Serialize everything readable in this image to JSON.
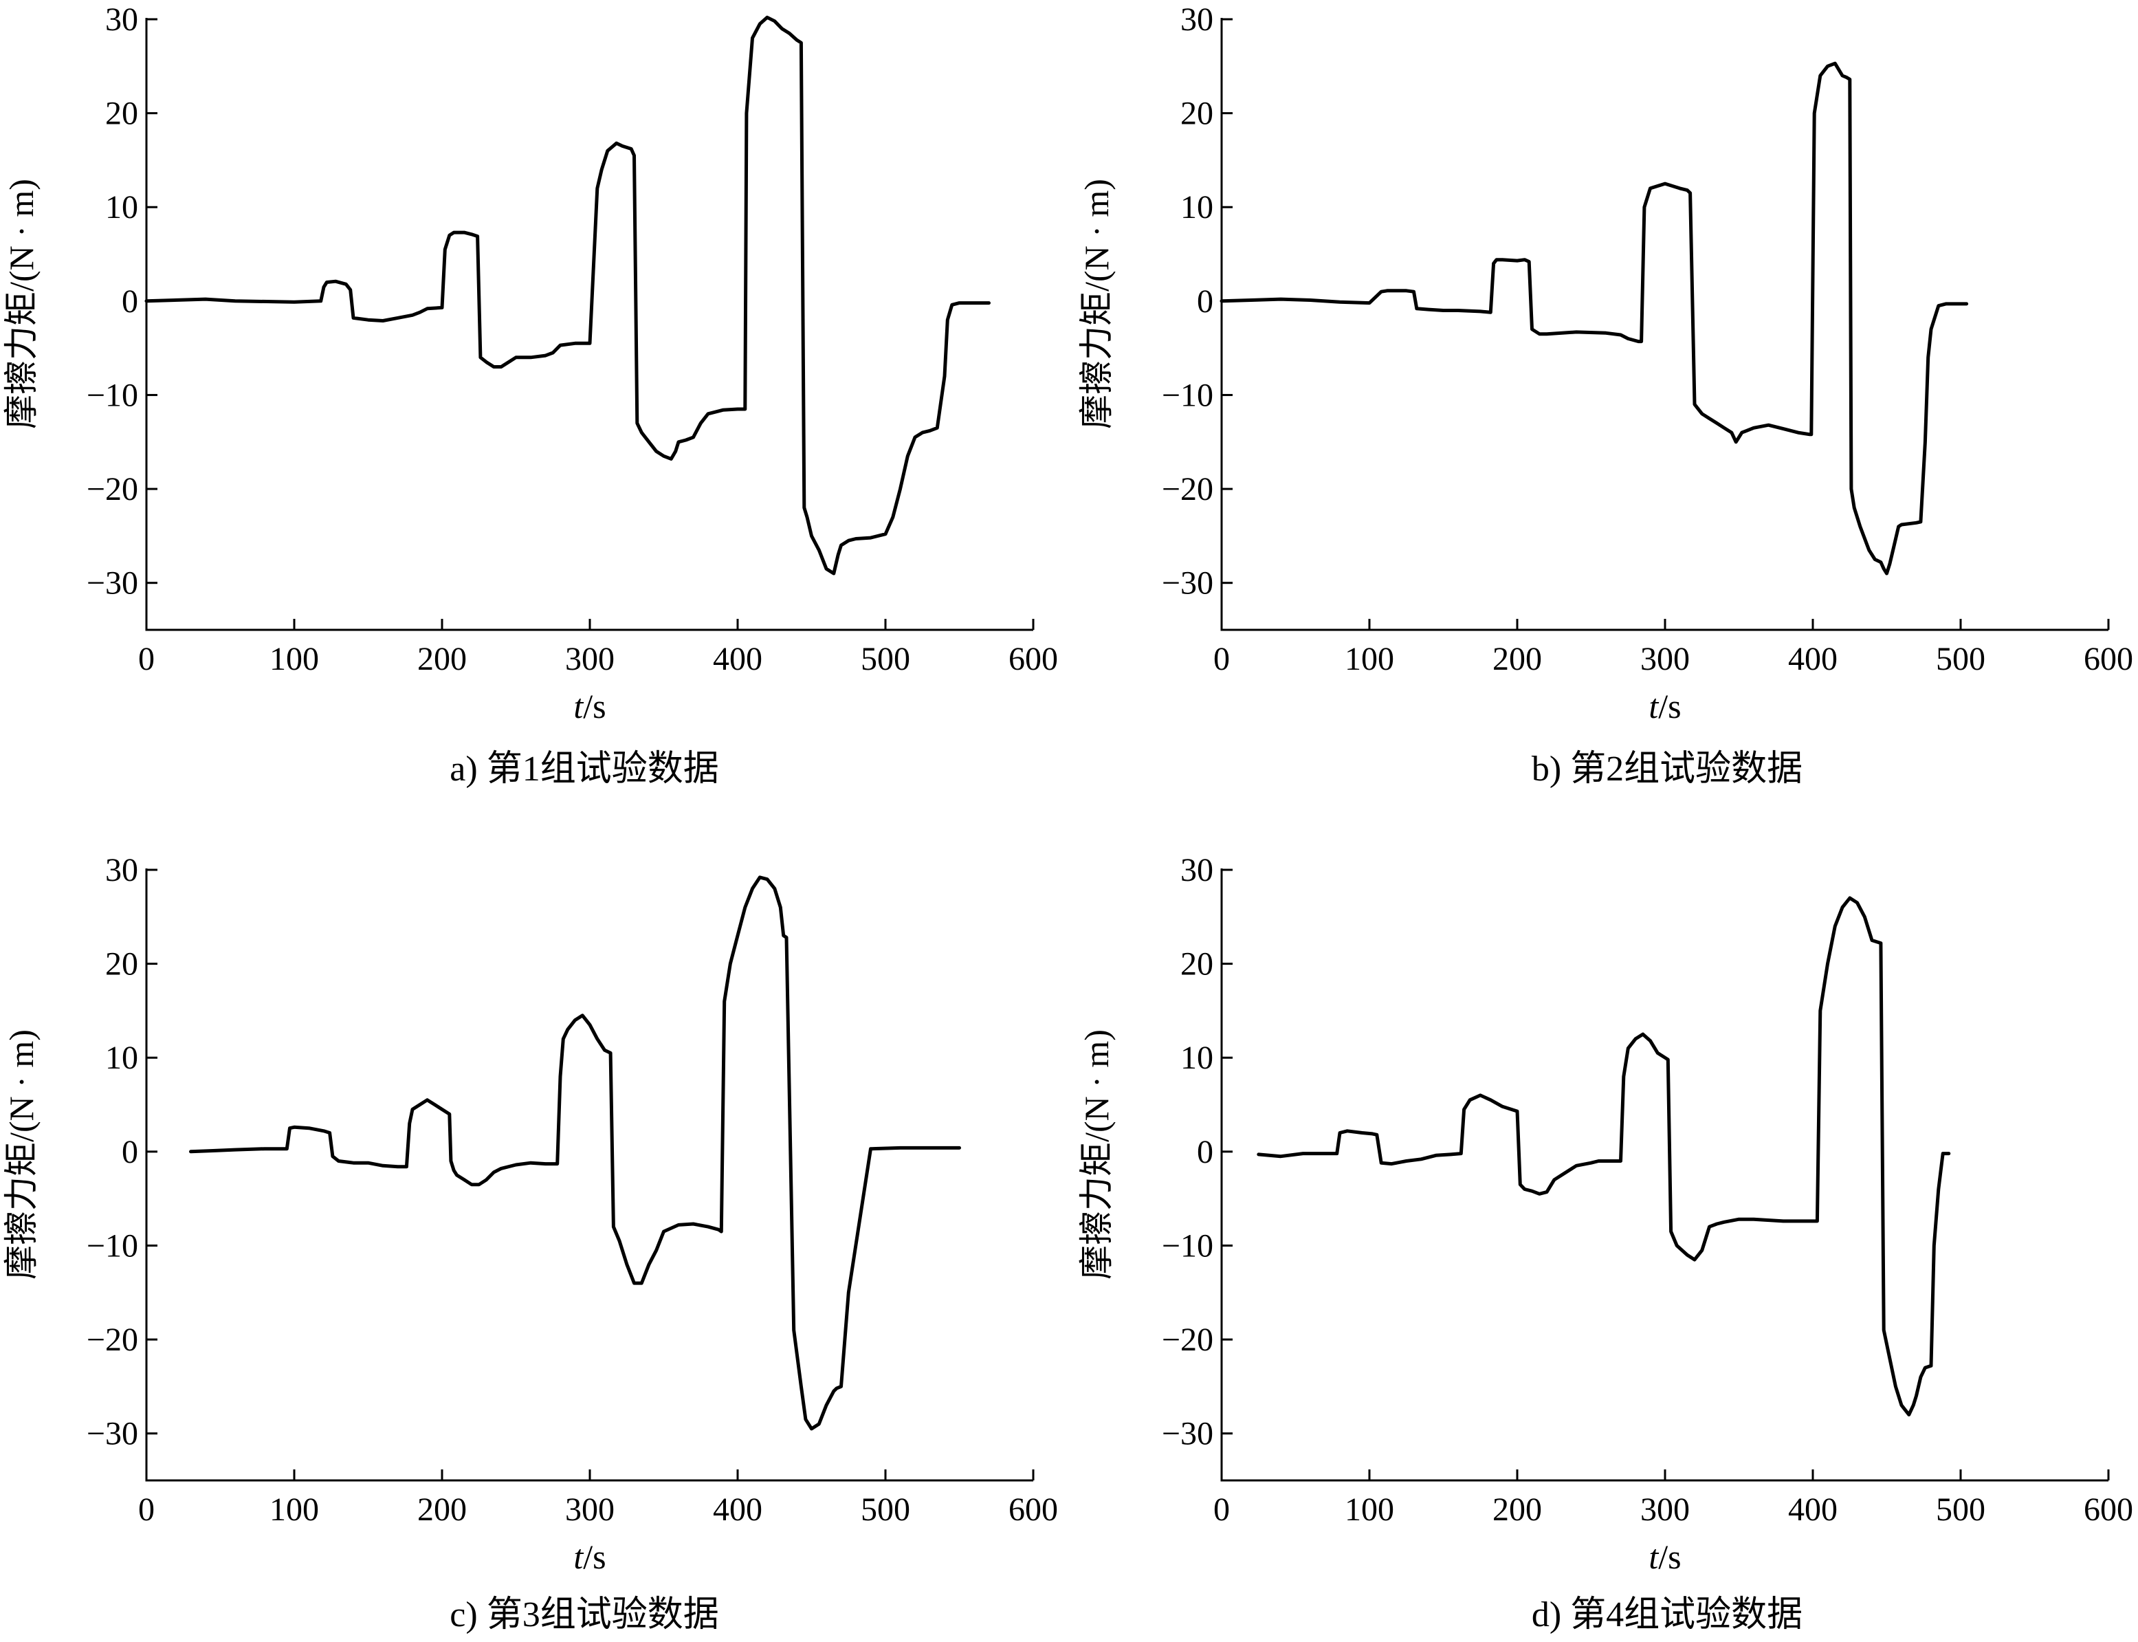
{
  "chart_data": [
    {
      "type": "line",
      "caption": "a) 第1组试验数据",
      "xlabel_italic": "t",
      "xlabel_unit": "/s",
      "ylabel": "摩擦力矩/(N · m)",
      "xlim": [
        0,
        600
      ],
      "ylim": [
        -35,
        30
      ],
      "xticks": [
        0,
        100,
        200,
        300,
        400,
        500,
        600
      ],
      "yticks": [
        -30,
        -20,
        -10,
        0,
        10,
        20,
        30
      ],
      "series": [
        {
          "x": [
            0,
            40,
            60,
            100,
            118,
            120,
            122,
            128,
            135,
            138,
            140,
            150,
            160,
            170,
            180,
            185,
            190,
            200,
            202,
            205,
            208,
            215,
            220,
            224,
            226,
            230,
            235,
            240,
            245,
            250,
            260,
            270,
            275,
            280,
            290,
            300,
            305,
            308,
            312,
            318,
            322,
            328,
            330,
            332,
            335,
            340,
            345,
            350,
            355,
            358,
            360,
            365,
            370,
            375,
            380,
            385,
            390,
            400,
            405,
            406,
            408,
            410,
            415,
            420,
            425,
            430,
            435,
            440,
            443,
            445,
            447,
            450,
            455,
            460,
            465,
            468,
            470,
            475,
            480,
            490,
            500,
            505,
            510,
            515,
            520,
            525,
            530,
            535,
            540,
            542,
            545,
            550,
            560,
            570
          ],
          "y": [
            0,
            0.2,
            0,
            -0.1,
            0,
            1.5,
            2,
            2.1,
            1.8,
            1.2,
            -1.8,
            -2,
            -2.1,
            -1.8,
            -1.5,
            -1.2,
            -0.8,
            -0.7,
            5.5,
            7,
            7.3,
            7.3,
            7.1,
            6.9,
            -6,
            -6.5,
            -7,
            -7,
            -6.5,
            -6,
            -6,
            -5.8,
            -5.5,
            -4.7,
            -4.5,
            -4.5,
            12,
            14,
            16,
            16.8,
            16.5,
            16.2,
            15.5,
            -13,
            -14,
            -15,
            -16,
            -16.5,
            -16.8,
            -16,
            -15,
            -14.8,
            -14.5,
            -13,
            -12,
            -11.8,
            -11.6,
            -11.5,
            -11.5,
            20,
            24,
            28,
            29.5,
            30.2,
            29.8,
            29,
            28.5,
            27.8,
            27.5,
            -22,
            -23,
            -25,
            -26.5,
            -28.5,
            -29,
            -27,
            -26,
            -25.5,
            -25.3,
            -25.2,
            -24.8,
            -23,
            -20,
            -16.5,
            -14.5,
            -14,
            -13.8,
            -13.5,
            -8,
            -2,
            -0.4,
            -0.2,
            -0.2,
            -0.2
          ]
        }
      ]
    },
    {
      "type": "line",
      "caption": "b) 第2组试验数据",
      "xlabel_italic": "t",
      "xlabel_unit": "/s",
      "ylabel": "摩擦力矩/(N · m)",
      "xlim": [
        0,
        600
      ],
      "ylim": [
        -35,
        30
      ],
      "xticks": [
        0,
        100,
        200,
        300,
        400,
        500,
        600
      ],
      "yticks": [
        -30,
        -20,
        -10,
        0,
        10,
        20,
        30
      ],
      "series": [
        {
          "x": [
            0,
            20,
            40,
            60,
            80,
            100,
            108,
            112,
            125,
            130,
            132,
            140,
            150,
            160,
            175,
            182,
            184,
            186,
            190,
            200,
            205,
            208,
            210,
            215,
            220,
            240,
            260,
            270,
            275,
            282,
            284,
            286,
            290,
            300,
            310,
            315,
            317,
            320,
            325,
            330,
            335,
            340,
            345,
            348,
            352,
            360,
            370,
            380,
            390,
            398,
            399,
            401,
            405,
            410,
            415,
            420,
            423,
            425,
            426,
            428,
            432,
            438,
            442,
            446,
            448,
            450,
            452,
            455,
            458,
            460,
            470,
            473,
            476,
            478,
            480,
            485,
            490,
            500,
            504
          ],
          "y": [
            0,
            0.1,
            0.2,
            0.1,
            -0.1,
            -0.2,
            1,
            1.1,
            1.1,
            1,
            -0.8,
            -0.9,
            -1,
            -1,
            -1.1,
            -1.2,
            4,
            4.4,
            4.4,
            4.3,
            4.4,
            4.2,
            -3,
            -3.5,
            -3.5,
            -3.3,
            -3.4,
            -3.6,
            -4,
            -4.3,
            -4.3,
            10,
            12,
            12.5,
            12,
            11.8,
            11.5,
            -11,
            -12,
            -12.5,
            -13,
            -13.5,
            -14,
            -15,
            -14,
            -13.5,
            -13.2,
            -13.6,
            -14,
            -14.2,
            -14.2,
            20,
            24,
            25,
            25.3,
            24,
            23.8,
            23.6,
            -20,
            -22,
            -24,
            -26.5,
            -27.5,
            -27.8,
            -28.5,
            -29,
            -28,
            -26,
            -24,
            -23.8,
            -23.6,
            -23.5,
            -15,
            -6,
            -3,
            -0.5,
            -0.3,
            -0.3,
            -0.3
          ]
        }
      ]
    },
    {
      "type": "line",
      "caption": "c) 第3组试验数据",
      "xlabel_italic": "t",
      "xlabel_unit": "/s",
      "ylabel": "摩擦力矩/(N · m)",
      "xlim": [
        0,
        600
      ],
      "ylim": [
        -35,
        30
      ],
      "xticks": [
        0,
        100,
        200,
        300,
        400,
        500,
        600
      ],
      "yticks": [
        -30,
        -20,
        -10,
        0,
        10,
        20,
        30
      ],
      "series": [
        {
          "x": [
            30,
            45,
            60,
            80,
            95,
            97,
            100,
            110,
            120,
            124,
            126,
            130,
            140,
            150,
            160,
            170,
            176,
            178,
            180,
            185,
            190,
            195,
            200,
            205,
            206,
            208,
            210,
            215,
            220,
            225,
            230,
            235,
            240,
            250,
            260,
            270,
            278,
            280,
            282,
            285,
            290,
            295,
            300,
            305,
            310,
            314,
            316,
            320,
            325,
            330,
            335,
            340,
            345,
            350,
            360,
            370,
            380,
            387,
            389,
            391,
            395,
            400,
            405,
            410,
            415,
            420,
            425,
            429,
            431,
            433,
            438,
            443,
            446,
            450,
            455,
            460,
            465,
            467,
            470,
            475,
            490,
            510,
            530,
            550
          ],
          "y": [
            0,
            0.1,
            0.2,
            0.3,
            0.3,
            2.5,
            2.6,
            2.5,
            2.2,
            2,
            -0.5,
            -1,
            -1.2,
            -1.2,
            -1.5,
            -1.6,
            -1.6,
            3,
            4.5,
            5,
            5.5,
            5,
            4.5,
            4,
            -1,
            -2,
            -2.5,
            -3,
            -3.5,
            -3.5,
            -3,
            -2.2,
            -1.8,
            -1.4,
            -1.2,
            -1.3,
            -1.3,
            8,
            12,
            13,
            14,
            14.5,
            13.5,
            12,
            10.8,
            10.5,
            -8,
            -9.5,
            -12,
            -14,
            -14,
            -12,
            -10.5,
            -8.5,
            -7.8,
            -7.7,
            -8,
            -8.3,
            -8.5,
            16,
            20,
            23,
            26,
            28,
            29.2,
            29,
            28,
            26,
            23,
            22.8,
            -19,
            -25,
            -28.5,
            -29.5,
            -29,
            -27,
            -25.5,
            -25.2,
            -25,
            -15,
            0.3,
            0.4,
            0.4,
            0.4
          ]
        }
      ]
    },
    {
      "type": "line",
      "caption": "d) 第4组试验数据",
      "xlabel_italic": "t",
      "xlabel_unit": "/s",
      "ylabel": "摩擦力矩/(N · m)",
      "xlim": [
        0,
        600
      ],
      "ylim": [
        -35,
        30
      ],
      "xticks": [
        0,
        100,
        200,
        300,
        400,
        500,
        600
      ],
      "yticks": [
        -30,
        -20,
        -10,
        0,
        10,
        20,
        30
      ],
      "series": [
        {
          "x": [
            25,
            40,
            55,
            70,
            78,
            80,
            85,
            95,
            102,
            105,
            108,
            115,
            125,
            135,
            145,
            155,
            162,
            164,
            168,
            175,
            182,
            190,
            196,
            200,
            202,
            205,
            210,
            215,
            220,
            225,
            230,
            240,
            250,
            255,
            265,
            270,
            272,
            275,
            280,
            285,
            290,
            295,
            300,
            302,
            304,
            308,
            315,
            320,
            325,
            330,
            335,
            340,
            350,
            360,
            380,
            400,
            403,
            405,
            410,
            415,
            420,
            425,
            430,
            435,
            440,
            444,
            446,
            448,
            452,
            456,
            460,
            465,
            468,
            470,
            473,
            476,
            480,
            482,
            485,
            488,
            492
          ],
          "y": [
            -0.3,
            -0.5,
            -0.2,
            -0.2,
            -0.2,
            2,
            2.2,
            2,
            1.9,
            1.8,
            -1.2,
            -1.3,
            -1,
            -0.8,
            -0.4,
            -0.3,
            -0.2,
            4.5,
            5.5,
            6,
            5.5,
            4.8,
            4.5,
            4.3,
            -3.5,
            -4,
            -4.2,
            -4.5,
            -4.3,
            -3,
            -2.5,
            -1.5,
            -1.2,
            -1,
            -1,
            -1,
            8,
            11,
            12,
            12.5,
            11.8,
            10.5,
            10,
            9.8,
            -8.5,
            -10,
            -11,
            -11.5,
            -10.5,
            -8,
            -7.7,
            -7.5,
            -7.2,
            -7.2,
            -7.4,
            -7.4,
            -7.4,
            15,
            20,
            24,
            26,
            27,
            26.5,
            25,
            22.5,
            22.3,
            22.2,
            -19,
            -22,
            -25,
            -27,
            -28,
            -27,
            -26,
            -24,
            -23,
            -22.8,
            -10,
            -4,
            -0.2,
            -0.2
          ]
        }
      ]
    }
  ]
}
